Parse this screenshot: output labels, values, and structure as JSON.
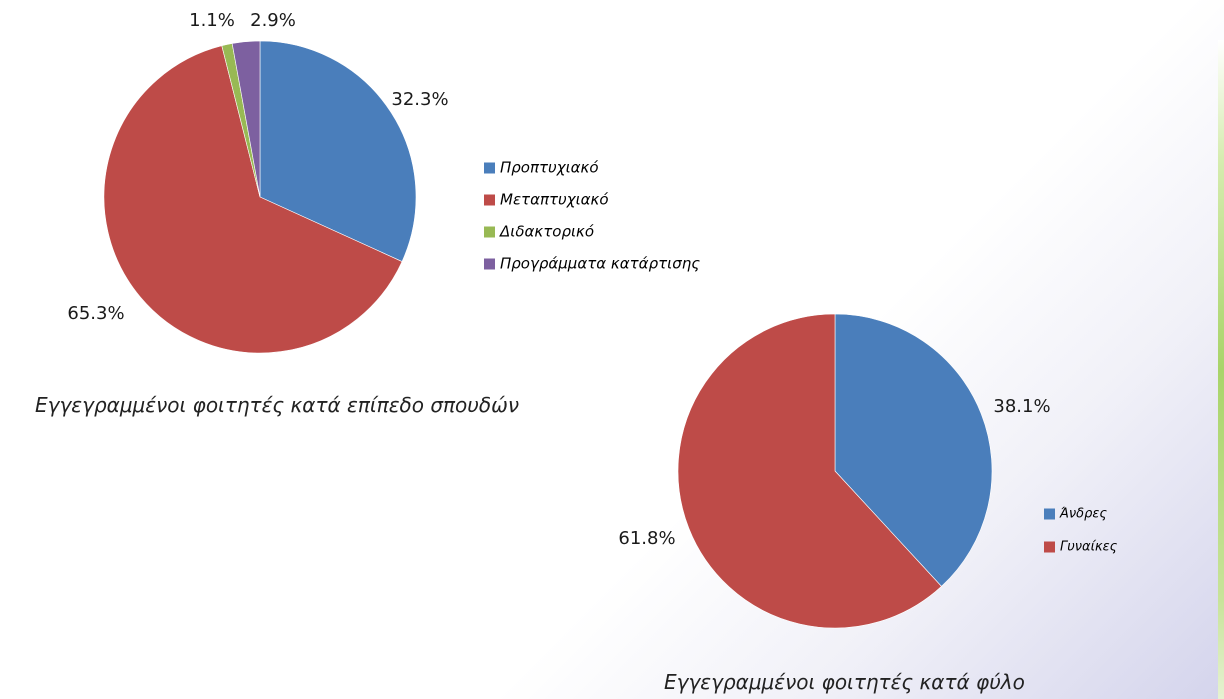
{
  "chart_data": [
    {
      "type": "pie",
      "title": "Εγγεγραμμένοι φοιτητές κατά επίπεδο σπουδών",
      "categories": [
        "Προπτυχιακό",
        "Μεταπτυχιακό",
        "Διδακτορικό",
        "Προγράμματα κατάρτισης"
      ],
      "values": [
        32.3,
        65.3,
        1.1,
        2.9
      ],
      "labels": [
        "32.3%",
        "65.3%",
        "1.1%",
        "2.9%"
      ],
      "colors": [
        "#4a7ebb",
        "#be4b48",
        "#98b954",
        "#7d60a0"
      ],
      "legend_position": "right"
    },
    {
      "type": "pie",
      "title": "Εγγεγραμμένοι φοιτητές κατά φύλο",
      "categories": [
        "Άνδρες",
        "Γυναίκες"
      ],
      "values": [
        38.1,
        61.8
      ],
      "labels": [
        "38.1%",
        "61.8%"
      ],
      "colors": [
        "#4a7ebb",
        "#be4b48"
      ],
      "legend_position": "right"
    }
  ]
}
